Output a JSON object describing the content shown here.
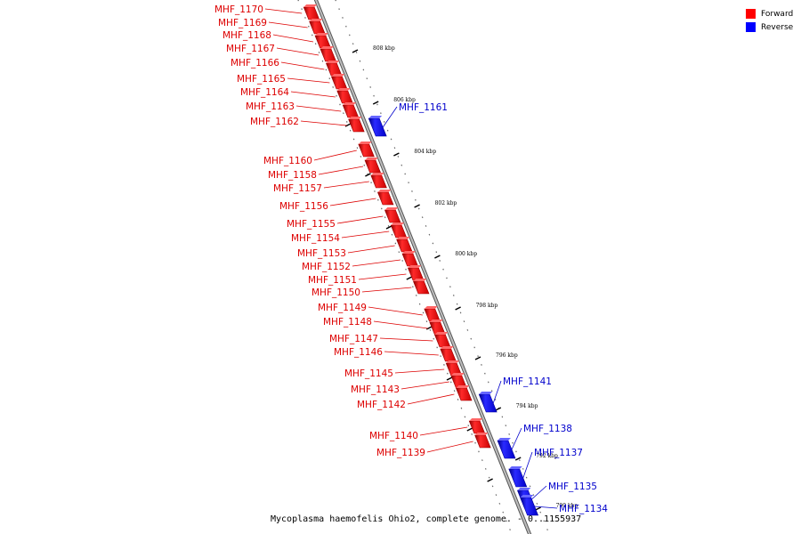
{
  "legend": {
    "forward_label": "Forward",
    "reverse_label": "Reverse",
    "forward_color": "#ff0000",
    "reverse_color": "#0000ff"
  },
  "caption": "Mycoplasma haemofelis Ohio2, complete genome. - 0..1155937",
  "label_colors": {
    "forward": "#dd0000",
    "reverse": "#0000cc"
  },
  "scale_labels": [
    "808 kbp",
    "806 kbp",
    "804 kbp",
    "802 kbp",
    "800 kbp",
    "798 kbp",
    "796 kbp",
    "794 kbp",
    "792 kbp",
    "790 kbp"
  ],
  "genes": [
    {
      "name": "MHF_1170",
      "strand": "forward"
    },
    {
      "name": "MHF_1169",
      "strand": "forward"
    },
    {
      "name": "MHF_1168",
      "strand": "forward"
    },
    {
      "name": "MHF_1167",
      "strand": "forward"
    },
    {
      "name": "MHF_1166",
      "strand": "forward"
    },
    {
      "name": "MHF_1165",
      "strand": "forward"
    },
    {
      "name": "MHF_1164",
      "strand": "forward"
    },
    {
      "name": "MHF_1163",
      "strand": "forward"
    },
    {
      "name": "MHF_1162",
      "strand": "forward"
    },
    {
      "name": "MHF_1161",
      "strand": "reverse"
    },
    {
      "name": "MHF_1160",
      "strand": "forward"
    },
    {
      "name": "MHF_1158",
      "strand": "forward"
    },
    {
      "name": "MHF_1157",
      "strand": "forward"
    },
    {
      "name": "MHF_1156",
      "strand": "forward"
    },
    {
      "name": "MHF_1155",
      "strand": "forward"
    },
    {
      "name": "MHF_1154",
      "strand": "forward"
    },
    {
      "name": "MHF_1153",
      "strand": "forward"
    },
    {
      "name": "MHF_1152",
      "strand": "forward"
    },
    {
      "name": "MHF_1151",
      "strand": "forward"
    },
    {
      "name": "MHF_1150",
      "strand": "forward"
    },
    {
      "name": "MHF_1149",
      "strand": "forward"
    },
    {
      "name": "MHF_1148",
      "strand": "forward"
    },
    {
      "name": "MHF_1147",
      "strand": "forward"
    },
    {
      "name": "MHF_1146",
      "strand": "forward"
    },
    {
      "name": "MHF_1145",
      "strand": "forward"
    },
    {
      "name": "MHF_1143",
      "strand": "forward"
    },
    {
      "name": "MHF_1142",
      "strand": "forward"
    },
    {
      "name": "MHF_1141",
      "strand": "reverse"
    },
    {
      "name": "MHF_1140",
      "strand": "forward"
    },
    {
      "name": "MHF_1139",
      "strand": "forward"
    },
    {
      "name": "MHF_1138",
      "strand": "reverse"
    },
    {
      "name": "MHF_1137",
      "strand": "reverse"
    },
    {
      "name": "MHF_1135",
      "strand": "reverse"
    },
    {
      "name": "MHF_1134",
      "strand": "reverse"
    }
  ]
}
